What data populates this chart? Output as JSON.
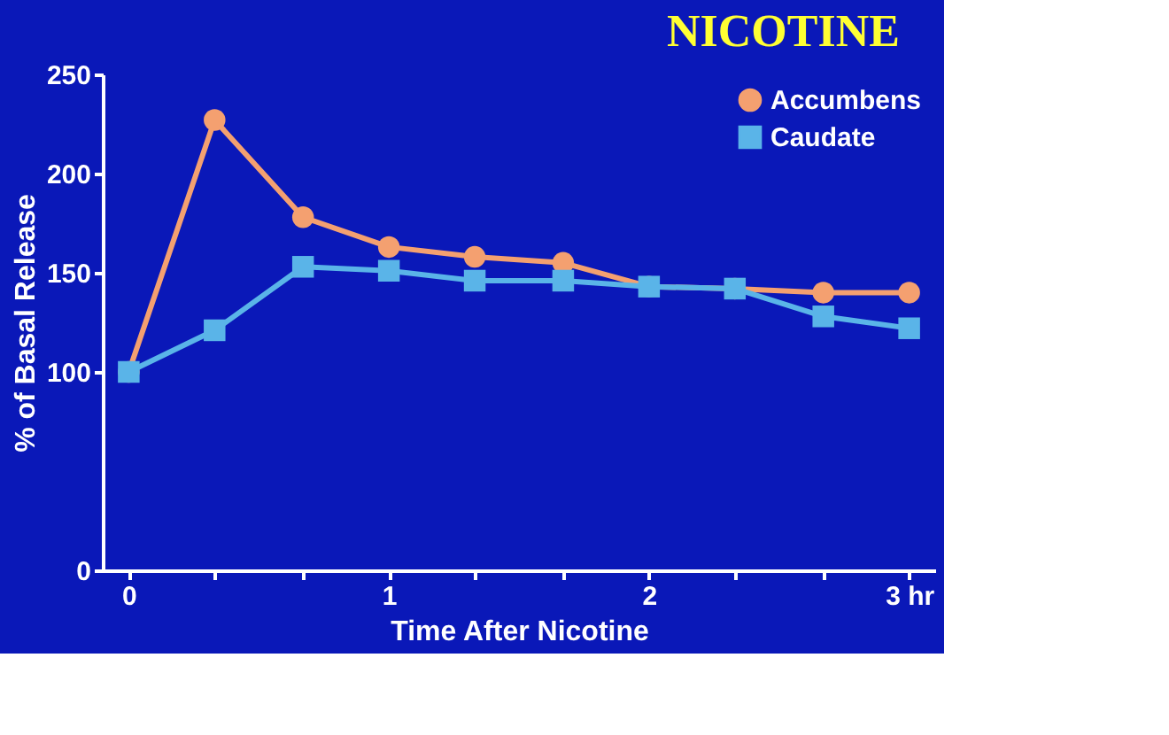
{
  "chart_data": {
    "type": "line",
    "title": "NICOTINE",
    "xlabel": "Time After Nicotine",
    "ylabel": "% of Basal Release",
    "x": [
      0,
      0.33,
      0.67,
      1,
      1.33,
      1.67,
      2,
      2.33,
      2.67,
      3
    ],
    "series": [
      {
        "name": "Accumbens",
        "color": "#f4a070",
        "marker": "circle",
        "values": [
          100,
          227,
          178,
          163,
          158,
          155,
          143,
          142,
          140,
          140
        ]
      },
      {
        "name": "Caudate",
        "color": "#5ab4e8",
        "marker": "square",
        "values": [
          100,
          121,
          153,
          151,
          146,
          146,
          143,
          142,
          128,
          122
        ]
      }
    ],
    "xlim": [
      -0.1,
      3.1
    ],
    "xticks": [
      0,
      {
        "value": 0.33,
        "label": null
      },
      {
        "value": 0.67,
        "label": null
      },
      1,
      {
        "value": 1.33,
        "label": null
      },
      {
        "value": 1.67,
        "label": null
      },
      2,
      {
        "value": 2.33,
        "label": null
      },
      {
        "value": 2.67,
        "label": null
      },
      {
        "value": 3,
        "label": "3 hr"
      }
    ],
    "ylim": [
      0,
      250
    ],
    "yticks": [
      0,
      100,
      150,
      200,
      250
    ],
    "grid": false,
    "legend": "top right",
    "line_style": "solid"
  }
}
